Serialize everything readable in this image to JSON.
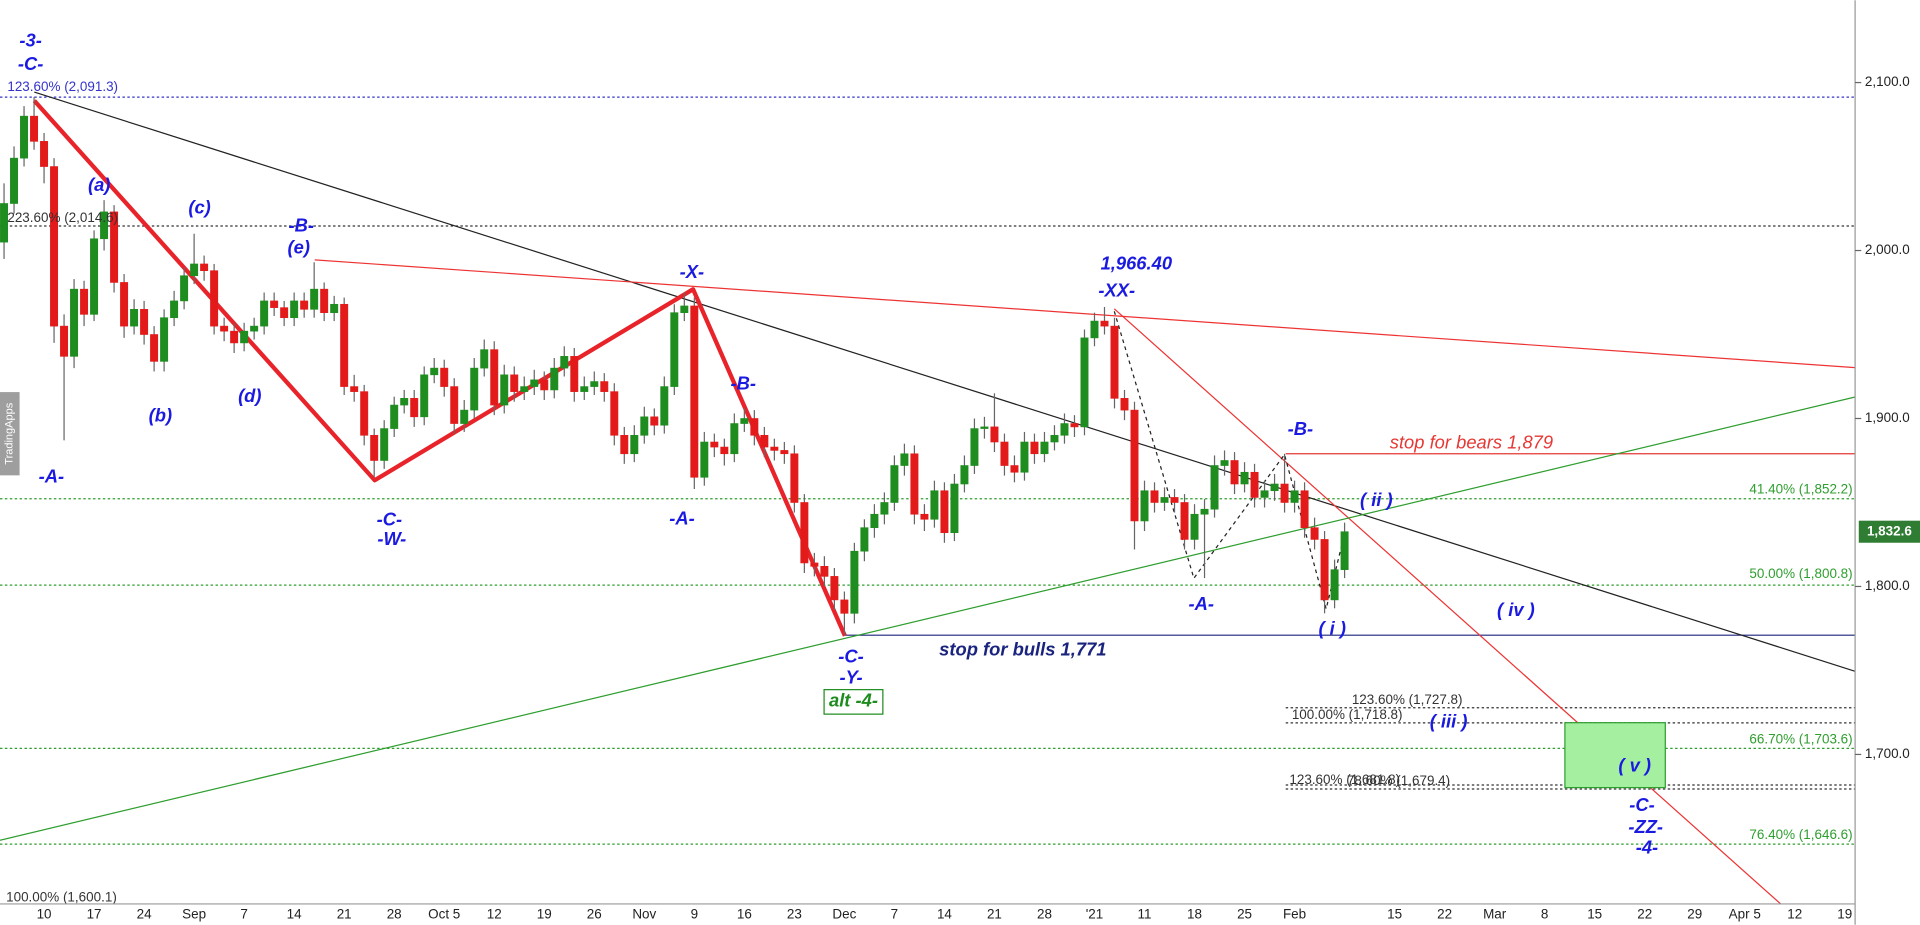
{
  "chart_data": {
    "type": "candlestick",
    "up_color": "#1e8c1e",
    "down_color": "#e31a1a",
    "categories": [
      null,
      null,
      null,
      null,
      "10",
      null,
      null,
      null,
      null,
      "17",
      null,
      null,
      null,
      null,
      "24",
      null,
      null,
      null,
      null,
      "Sep",
      null,
      null,
      null,
      null,
      "7",
      null,
      null,
      null,
      null,
      "14",
      null,
      null,
      null,
      null,
      "21",
      null,
      null,
      null,
      null,
      "28",
      null,
      null,
      null,
      null,
      "Oct 5",
      null,
      null,
      null,
      null,
      "12",
      null,
      null,
      null,
      null,
      "19",
      null,
      null,
      null,
      null,
      "26",
      null,
      null,
      null,
      null,
      "Nov",
      null,
      null,
      null,
      null,
      "9",
      null,
      null,
      null,
      null,
      "16",
      null,
      null,
      null,
      null,
      "23",
      null,
      null,
      null,
      null,
      "Dec",
      null,
      null,
      null,
      null,
      "7",
      null,
      null,
      null,
      null,
      "14",
      null,
      null,
      null,
      null,
      "21",
      null,
      null,
      null,
      null,
      "28",
      null,
      null,
      null,
      null,
      "'21",
      null,
      null,
      null,
      null,
      "11",
      null,
      null,
      null,
      null,
      "18",
      null,
      null,
      null,
      null,
      "25",
      null,
      null,
      null,
      null,
      "Feb",
      null,
      null,
      null,
      null,
      null,
      null,
      null,
      null,
      null,
      "15",
      null,
      null,
      null,
      null,
      "22",
      null,
      null,
      null,
      null,
      "Mar",
      null,
      null,
      null,
      null,
      "8",
      null,
      null,
      null,
      null,
      "15",
      null,
      null,
      null,
      null,
      "22",
      null,
      null,
      null,
      null,
      "29",
      null,
      null,
      null,
      null,
      "Apr 5",
      null,
      null,
      null,
      null,
      "12",
      null,
      null,
      null,
      null,
      "19"
    ],
    "open": [
      2005,
      2028,
      2055,
      2080,
      2065,
      2050,
      1955,
      1937,
      1977,
      1962,
      2007,
      2023,
      1981,
      1955,
      1965,
      1950,
      1934,
      1960,
      1970,
      1985,
      1992,
      1988,
      1955,
      1952,
      1945,
      1952,
      1955,
      1970,
      1966,
      1960,
      1970,
      1965,
      1977,
      1963,
      1968,
      1919,
      1916,
      1890,
      1875,
      1894,
      1908,
      1912,
      1901,
      1926,
      1930,
      1919,
      1897,
      1905,
      1930,
      1941,
      1908,
      1926,
      1916,
      1919,
      1923,
      1917,
      1930,
      1937,
      1916,
      1919,
      1922,
      1916,
      1890,
      1879,
      1890,
      1901,
      1896,
      1919,
      1963,
      1967,
      1865,
      1886,
      1883,
      1879,
      1897,
      1900,
      1890,
      1883,
      1881,
      1879,
      1850,
      1814,
      1812,
      1806,
      1792,
      1784,
      1821,
      1835,
      1843,
      1850,
      1872,
      1879,
      1843,
      1840,
      1857,
      1832,
      1861,
      1872,
      1894,
      1895,
      1886,
      1872,
      1868,
      1886,
      1879,
      1886,
      1890,
      1897,
      1895,
      1948,
      1958,
      1955,
      1912,
      1905,
      1839,
      1857,
      1850,
      1853,
      1850,
      1828,
      1843,
      1846,
      1872,
      1875,
      1861,
      1868,
      1853,
      1857,
      1861,
      1850,
      1857,
      1835,
      1828,
      1792,
      1810,
      null,
      null,
      null,
      null,
      null,
      null,
      null,
      null,
      null,
      null,
      null,
      null,
      null,
      null,
      null,
      null,
      null,
      null,
      null,
      null,
      null,
      null,
      null,
      null,
      null,
      null,
      null,
      null,
      null,
      null,
      null,
      null,
      null,
      null,
      null,
      null,
      null,
      null,
      null,
      null,
      null,
      null,
      null,
      null,
      null,
      null,
      null,
      null,
      null,
      null
    ],
    "high": [
      2040,
      2062,
      2086,
      2091.3,
      2070,
      2055,
      1962,
      1983,
      1982,
      2012,
      2030,
      2027,
      1986,
      1971,
      1970,
      1955,
      1965,
      1976,
      1990,
      2010,
      1997,
      1992,
      1960,
      1957,
      1957,
      1960,
      1975,
      1975,
      1970,
      1975,
      1975,
      1993,
      1981,
      1973,
      1972,
      1926,
      1920,
      1894,
      1899,
      1913,
      1917,
      1917,
      1931,
      1936,
      1935,
      1924,
      1911,
      1936,
      1947,
      1946,
      1932,
      1931,
      1925,
      1929,
      1928,
      1936,
      1943,
      1942,
      1925,
      1928,
      1927,
      1921,
      1895,
      1896,
      1907,
      1906,
      1925,
      1968,
      1975,
      1972,
      1892,
      1891,
      1888,
      1903,
      1906,
      1905,
      1895,
      1888,
      1886,
      1884,
      1855,
      1820,
      1818,
      1811,
      1797,
      1826,
      1840,
      1849,
      1856,
      1878,
      1885,
      1884,
      1849,
      1863,
      1862,
      1867,
      1878,
      1900,
      1901,
      1915,
      1891,
      1878,
      1892,
      1891,
      1892,
      1896,
      1903,
      1902,
      1953,
      1963,
      1966.4,
      1960,
      1917,
      1910,
      1863,
      1862,
      1859,
      1858,
      1855,
      1849,
      1852,
      1878,
      1881,
      1880,
      1874,
      1873,
      1863,
      1867,
      1879,
      1863,
      1862,
      1841,
      1833,
      1816,
      1838,
      null,
      null,
      null,
      null,
      null,
      null,
      null,
      null,
      null,
      null,
      null,
      null,
      null,
      null,
      null,
      null,
      null,
      null,
      null,
      null,
      null,
      null,
      null,
      null,
      null,
      null,
      null,
      null,
      null,
      null,
      null,
      null,
      null,
      null,
      null,
      null,
      null,
      null,
      null,
      null,
      null,
      null,
      null,
      null,
      null,
      null,
      null,
      null,
      null,
      null
    ],
    "low": [
      1995,
      2022,
      2050,
      2060,
      2040,
      1945,
      1887,
      1930,
      1955,
      1958,
      2000,
      1975,
      1948,
      1950,
      1944,
      1928,
      1928,
      1955,
      1965,
      1980,
      1982,
      1950,
      1946,
      1939,
      1940,
      1947,
      1950,
      1961,
      1955,
      1955,
      1960,
      1960,
      1958,
      1958,
      1914,
      1910,
      1884,
      1865,
      1870,
      1889,
      1903,
      1895,
      1896,
      1921,
      1913,
      1891,
      1892,
      1900,
      1925,
      1902,
      1903,
      1910,
      1911,
      1914,
      1911,
      1912,
      1925,
      1910,
      1911,
      1914,
      1910,
      1884,
      1873,
      1874,
      1885,
      1890,
      1891,
      1914,
      1958,
      1858,
      1860,
      1877,
      1872,
      1874,
      1892,
      1884,
      1877,
      1875,
      1873,
      1844,
      1808,
      1806,
      1800,
      1786,
      1771,
      1778,
      1815,
      1829,
      1837,
      1845,
      1866,
      1837,
      1833,
      1835,
      1826,
      1827,
      1856,
      1867,
      1888,
      1880,
      1866,
      1862,
      1863,
      1873,
      1874,
      1881,
      1885,
      1889,
      1890,
      1943,
      1950,
      1906,
      1899,
      1822,
      1833,
      1844,
      1845,
      1844,
      1822,
      1822,
      1805,
      1841,
      1866,
      1855,
      1856,
      1847,
      1847,
      1851,
      1844,
      1844,
      1829,
      1822,
      1784,
      1787,
      1805,
      null,
      null,
      null,
      null,
      null,
      null,
      null,
      null,
      null,
      null,
      null,
      null,
      null,
      null,
      null,
      null,
      null,
      null,
      null,
      null,
      null,
      null,
      null,
      null,
      null,
      null,
      null,
      null,
      null,
      null,
      null,
      null,
      null,
      null,
      null,
      null,
      null,
      null,
      null,
      null,
      null,
      null,
      null,
      null,
      null,
      null,
      null,
      null,
      null,
      null
    ],
    "close": [
      2028,
      2055,
      2080,
      2065,
      2050,
      1955,
      1937,
      1977,
      1962,
      2007,
      2023,
      1981,
      1955,
      1965,
      1950,
      1934,
      1960,
      1970,
      1985,
      1992,
      1988,
      1955,
      1952,
      1945,
      1952,
      1955,
      1970,
      1966,
      1960,
      1970,
      1965,
      1977,
      1963,
      1968,
      1919,
      1916,
      1890,
      1875,
      1894,
      1908,
      1912,
      1901,
      1926,
      1930,
      1919,
      1897,
      1905,
      1930,
      1941,
      1908,
      1926,
      1916,
      1919,
      1923,
      1917,
      1930,
      1937,
      1916,
      1919,
      1922,
      1916,
      1890,
      1879,
      1890,
      1901,
      1896,
      1919,
      1963,
      1967,
      1865,
      1886,
      1883,
      1879,
      1897,
      1900,
      1890,
      1883,
      1881,
      1879,
      1850,
      1814,
      1812,
      1806,
      1792,
      1784,
      1821,
      1835,
      1843,
      1850,
      1872,
      1879,
      1843,
      1840,
      1857,
      1832,
      1861,
      1872,
      1894,
      1895,
      1886,
      1872,
      1868,
      1886,
      1879,
      1886,
      1890,
      1897,
      1895,
      1948,
      1958,
      1955,
      1912,
      1905,
      1839,
      1857,
      1850,
      1853,
      1850,
      1828,
      1843,
      1846,
      1872,
      1875,
      1861,
      1868,
      1853,
      1857,
      1861,
      1850,
      1857,
      1835,
      1828,
      1792,
      1810,
      1832.6,
      null,
      null,
      null,
      null,
      null,
      null,
      null,
      null,
      null,
      null,
      null,
      null,
      null,
      null,
      null,
      null,
      null,
      null,
      null,
      null,
      null,
      null,
      null,
      null,
      null,
      null,
      null,
      null,
      null,
      null,
      null,
      null,
      null,
      null,
      null,
      null,
      null,
      null,
      null,
      null,
      null,
      null,
      null,
      null,
      null,
      null,
      null,
      null,
      null,
      null
    ],
    "ylim": [
      1611,
      2149
    ],
    "yticks": [
      {
        "value": 1700,
        "label": "1,700.0"
      },
      {
        "value": 1800,
        "label": "1,800.0"
      },
      {
        "value": 1900,
        "label": "1,900.0"
      },
      {
        "value": 2000,
        "label": "2,000.0"
      },
      {
        "value": 2100,
        "label": "2,100.0"
      }
    ],
    "last_price": {
      "value": 1832.6,
      "label": "1,832.6",
      "color": "#2e7d32"
    },
    "levels": [
      {
        "value": 2091.3,
        "label": "123.60% (2,091.3)",
        "color": "#3333cc"
      },
      {
        "value": 2014.6,
        "label": "223.60% (2,014.6)",
        "color": "#333333"
      },
      {
        "value": 1852.2,
        "label": "41.40% (1,852.2)",
        "color": "#2e9e2e"
      },
      {
        "value": 1800.8,
        "label": "50.00% (1,800.8)",
        "color": "#2e9e2e"
      },
      {
        "value": 1727.8,
        "label": "123.60% (1,727.8)",
        "color": "#333333"
      },
      {
        "value": 1718.8,
        "label": "100.00% (1,718.8)",
        "color": "#333333"
      },
      {
        "value": 1703.6,
        "label": "66.70% (1,703.6)",
        "color": "#2e9e2e"
      },
      {
        "value": 1681.8,
        "label": "123.60% (1,681.8)",
        "color": "#333333"
      },
      {
        "value": 1679.4,
        "label": "78.60% (1,679.4)",
        "color": "#333333"
      },
      {
        "value": 1646.6,
        "label": "76.40% (1,646.6)",
        "color": "#2e9e2e"
      },
      {
        "value": 1600.1,
        "label": "100.00% (1,600.1)",
        "color": "#333333"
      },
      {
        "value": 1879,
        "label": "stop for bears 1,879",
        "color": "#e53935"
      },
      {
        "value": 1771,
        "label": "stop for bulls 1,771",
        "color": "#1a237e"
      }
    ],
    "annotations": [
      "-3-",
      "-C-",
      "(a)",
      "(b)",
      "(c)",
      "(d)",
      "-B-",
      "(e)",
      "-A-",
      "-C-",
      "-W-",
      "-X-",
      "-B-",
      "-A-",
      "-C-",
      "-Y-",
      "alt -4-",
      "1,966.40",
      "-XX-",
      "-A-",
      "-B-",
      "( ii )",
      "( i )",
      "( iv )",
      "( iii )",
      "( v )",
      "-C-",
      "-ZZ-",
      "-4-"
    ],
    "watermark": "TradingApps"
  }
}
